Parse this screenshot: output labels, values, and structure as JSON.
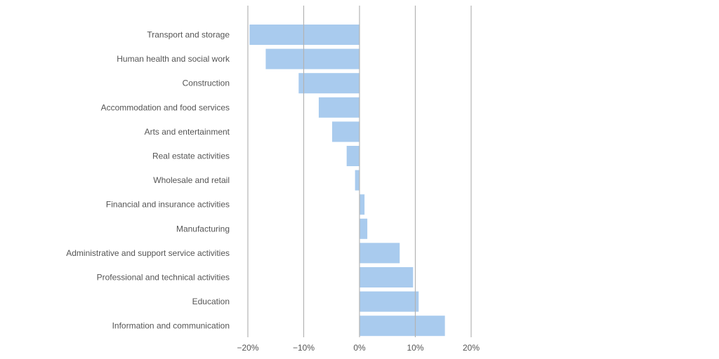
{
  "chart_data": {
    "type": "bar",
    "orientation": "horizontal",
    "categories": [
      "Transport and storage",
      "Human health and social work",
      "Construction",
      "Accommodation and food services",
      "Arts and entertainment",
      "Real estate activities",
      "Wholesale and retail",
      "Financial and insurance activities",
      "Manufacturing",
      "Administrative and support service activities",
      "Professional and technical activities",
      "Education",
      "Information and communication"
    ],
    "values": [
      -19.7,
      -16.8,
      -10.9,
      -7.3,
      -4.9,
      -2.3,
      -0.8,
      0.9,
      1.4,
      7.2,
      9.6,
      10.6,
      15.3
    ],
    "unit": "%",
    "xlim": [
      -20,
      20
    ],
    "xticks": [
      -20,
      -10,
      0,
      10,
      20
    ],
    "xtick_labels": [
      "−20%",
      "−10%",
      "0%",
      "10%",
      "20%"
    ],
    "title": "",
    "xlabel": "",
    "ylabel": "",
    "grid": "vertical",
    "bar_color": "#a4c8ed",
    "grid_color": "#b3b3b3"
  }
}
